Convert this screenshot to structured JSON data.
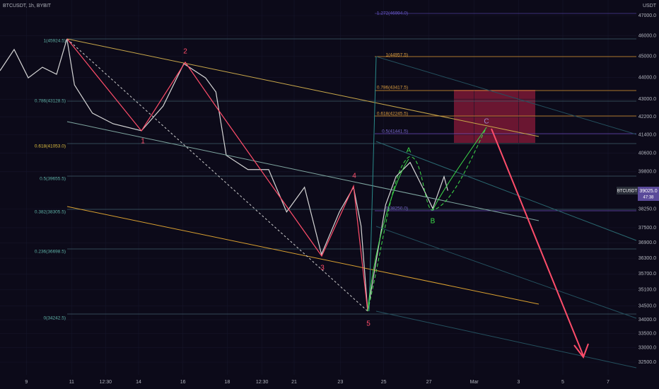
{
  "header": {
    "symbol": "BTCUSDT, 1h, BYBIT",
    "currency": "USDT"
  },
  "price_tag": {
    "symbol": "BTCUSDT",
    "price": "39025.0",
    "countdown": "47:38"
  },
  "fib_left": [
    "1(45924.5)",
    "0.786(43128.5)",
    "0.618(41053.0)",
    "0.5(39655.5)",
    "0.382(38305.5)",
    "0.236(36698.5)",
    "0(34242.5)"
  ],
  "fib_right": [
    "1.272(46994.0)",
    "1(44957.5)",
    "0.786(43417.5)",
    "0.618(42245.5)",
    "0.5(41441.5)",
    "0(38250.0)"
  ],
  "waves": [
    "1",
    "2",
    "3",
    "4",
    "5",
    "A",
    "B",
    "C"
  ],
  "chart_data": {
    "type": "line",
    "title": "BTCUSDT, 1h, BYBIT",
    "log_scale": true,
    "color": "#d6d6d6",
    "series": [
      {
        "name": "BTCUSDT",
        "x": [
          0,
          15,
          30,
          45,
          60,
          71,
          79,
          98,
          120,
          150,
          173,
          195,
          218,
          229,
          240,
          263,
          285,
          304,
          323,
          341,
          360,
          375,
          383,
          390,
          409,
          420,
          435,
          450,
          459,
          471,
          475
        ],
        "values": [
          44320,
          45333,
          43985,
          44485,
          44153,
          45848,
          43655,
          42363,
          41887,
          41576,
          42682,
          44654,
          43985,
          43329,
          40500,
          39893,
          39893,
          38135,
          39150,
          36450,
          38135,
          39150,
          37565,
          34320,
          38422,
          39595,
          40197,
          39006,
          38277,
          39595,
          39006
        ]
      }
    ],
    "xlim": [
      0,
      699
    ],
    "xticks": [
      {
        "value": 28,
        "label": "9"
      },
      {
        "value": 76,
        "label": "11"
      },
      {
        "value": 112,
        "label": "12:30"
      },
      {
        "value": 147,
        "label": "14"
      },
      {
        "value": 194,
        "label": "16"
      },
      {
        "value": 241,
        "label": "18"
      },
      {
        "value": 278,
        "label": "12:30"
      },
      {
        "value": 312,
        "label": "21"
      },
      {
        "value": 361,
        "label": "23"
      },
      {
        "value": 407,
        "label": "25"
      },
      {
        "value": 455,
        "label": "27"
      },
      {
        "value": 503,
        "label": "Mar"
      },
      {
        "value": 550,
        "label": "3"
      },
      {
        "value": 597,
        "label": "5"
      },
      {
        "value": 645,
        "label": "7"
      }
    ],
    "ylim": [
      32500,
      47000
    ],
    "yticks": [
      {
        "value": 47000,
        "label": "47000.0"
      },
      {
        "value": 46000,
        "label": "46000.0"
      },
      {
        "value": 45000,
        "label": "45000.0"
      },
      {
        "value": 44000,
        "label": "44000.0"
      },
      {
        "value": 43000,
        "label": "43000.0"
      },
      {
        "value": 42200,
        "label": "42200.0"
      },
      {
        "value": 41400,
        "label": "41400.0"
      },
      {
        "value": 40600,
        "label": "40600.0"
      },
      {
        "value": 39800,
        "label": "39800.0"
      },
      {
        "value": 38250,
        "label": "38250.0"
      },
      {
        "value": 37500,
        "label": "37500.0"
      },
      {
        "value": 36900,
        "label": "36900.0"
      },
      {
        "value": 36300,
        "label": "36300.0"
      },
      {
        "value": 35700,
        "label": "35700.0"
      },
      {
        "value": 35100,
        "label": "35100.0"
      },
      {
        "value": 34500,
        "label": "34500.0"
      },
      {
        "value": 34000,
        "label": "34000.0"
      },
      {
        "value": 33500,
        "label": "33500.0"
      },
      {
        "value": 33000,
        "label": "33000.0"
      },
      {
        "value": 32500,
        "label": "32500.0"
      }
    ]
  }
}
